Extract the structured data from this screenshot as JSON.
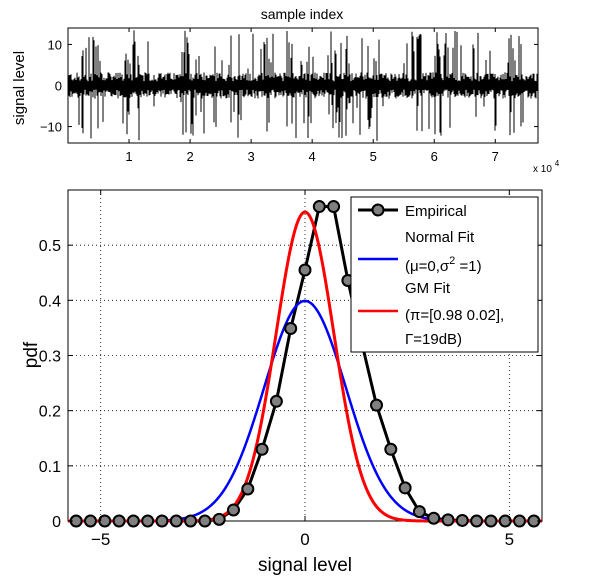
{
  "top_chart": {
    "title": "sample index",
    "ylabel": "signal level",
    "xtick_labels": [
      "1",
      "2",
      "3",
      "4",
      "5",
      "6",
      "7"
    ],
    "ytick_labels": [
      "10",
      "0",
      "−10"
    ],
    "exponent_label": "x 10",
    "exponent_power": "4"
  },
  "chart_data": [
    {
      "type": "line",
      "title": "sample index",
      "xlabel": "",
      "ylabel": "signal level",
      "xlim": [
        0,
        77000
      ],
      "ylim": [
        -14,
        14
      ],
      "xticks": [
        10000,
        20000,
        30000,
        40000,
        50000,
        60000,
        70000
      ],
      "yticks": [
        10,
        0,
        -10
      ],
      "series": [
        {
          "color": "#000000",
          "description_values": "dense time-series noise around 0 with impulsive spikes reaching about +/-13"
        }
      ]
    },
    {
      "type": "line",
      "title": "",
      "xlabel": "signal level",
      "ylabel": "pdf",
      "xlim": [
        -5.8,
        5.8
      ],
      "ylim": [
        0,
        0.6
      ],
      "grid": true,
      "xtick_labels": [
        "−5",
        "0",
        "5"
      ],
      "ytick_labels": [
        "0",
        "0.1",
        "0.2",
        "0.3",
        "0.4",
        "0.5"
      ],
      "legend_position": "top-right",
      "legend": [
        {
          "label_lines": [
            "Empirical"
          ],
          "color": "#000000",
          "marker": "circle"
        },
        {
          "label_lines": [
            "Normal Fit",
            "(μ=0,σ",
            "2",
            " =1)"
          ],
          "color": "#0000ff"
        },
        {
          "label_lines": [
            "GM Fit",
            "(π=[0.98 0.02],",
            "Γ=19dB)"
          ],
          "color": "#ff0000"
        }
      ],
      "series": [
        {
          "name": "Empirical",
          "color": "#000000",
          "x": [
            -5.6,
            -5.25,
            -4.9,
            -4.55,
            -4.2,
            -3.85,
            -3.5,
            -3.15,
            -2.8,
            -2.45,
            -2.1,
            -1.75,
            -1.4,
            -1.05,
            -0.7,
            -0.35,
            0.0,
            0.35,
            0.7,
            1.05,
            1.4,
            1.75,
            2.1,
            2.45,
            2.8,
            3.15,
            3.5,
            3.85,
            4.2,
            4.55,
            4.9,
            5.25,
            5.6
          ],
          "y": [
            0,
            0,
            0,
            0,
            0,
            0,
            0,
            0,
            0,
            0,
            0.003,
            0.02,
            0.058,
            0.13,
            0.217,
            0.349,
            0.455,
            0.57,
            0.57,
            0.436,
            0.32,
            0.21,
            0.13,
            0.06,
            0.017,
            0.005,
            0.002,
            0.001,
            0,
            0,
            0,
            0,
            0
          ]
        },
        {
          "name": "Normal Fit",
          "color": "#0000ff",
          "function": "normal",
          "mu": 0,
          "sigma": 1
        },
        {
          "name": "GM Fit",
          "color": "#ff0000",
          "function": "gaussian_mixture",
          "weights": [
            0.98,
            0.02
          ],
          "peak": 0.56
        }
      ]
    }
  ],
  "series_colors": {
    "empirical": "#000000",
    "normal": "#0000ff",
    "gm": "#ff0000",
    "marker_fill": "#808080"
  }
}
